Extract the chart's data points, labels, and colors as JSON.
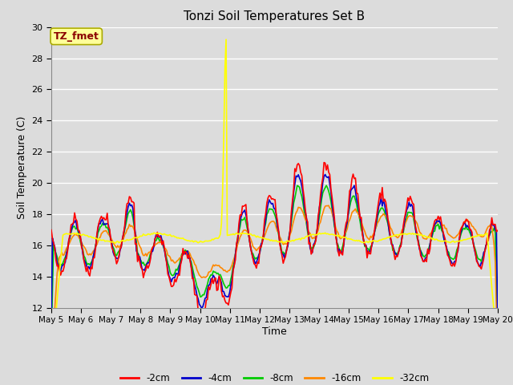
{
  "title": "Tonzi Soil Temperatures Set B",
  "xlabel": "Time",
  "ylabel": "Soil Temperature (C)",
  "ylim": [
    12,
    30
  ],
  "xlim": [
    0,
    360
  ],
  "annotation_text": "TZ_fmet",
  "annotation_color": "#8B0000",
  "annotation_bg": "#FFFF99",
  "bg_color": "#DCDCDC",
  "grid_color": "#FFFFFF",
  "series": [
    {
      "label": "-2cm",
      "color": "#FF0000",
      "lw": 1.2
    },
    {
      "label": "-4cm",
      "color": "#0000CC",
      "lw": 1.2
    },
    {
      "label": "-8cm",
      "color": "#00CC00",
      "lw": 1.2
    },
    {
      "label": "-16cm",
      "color": "#FF8800",
      "lw": 1.2
    },
    {
      "label": "-32cm",
      "color": "#FFFF00",
      "lw": 1.2
    }
  ],
  "xtick_labels": [
    "May 5",
    "May 6",
    "May 7",
    "May 8",
    "May 9",
    "May 10",
    "May 11",
    "May 12",
    "May 13",
    "May 14",
    "May 15",
    "May 16",
    "May 17",
    "May 18",
    "May 19",
    "May 20"
  ],
  "xtick_positions": [
    0,
    24,
    48,
    72,
    96,
    120,
    144,
    168,
    192,
    216,
    240,
    264,
    288,
    312,
    336,
    360
  ],
  "ytick_labels": [
    "12",
    "14",
    "16",
    "18",
    "20",
    "22",
    "24",
    "26",
    "28",
    "30"
  ],
  "ytick_positions": [
    12,
    14,
    16,
    18,
    20,
    22,
    24,
    26,
    28,
    30
  ]
}
